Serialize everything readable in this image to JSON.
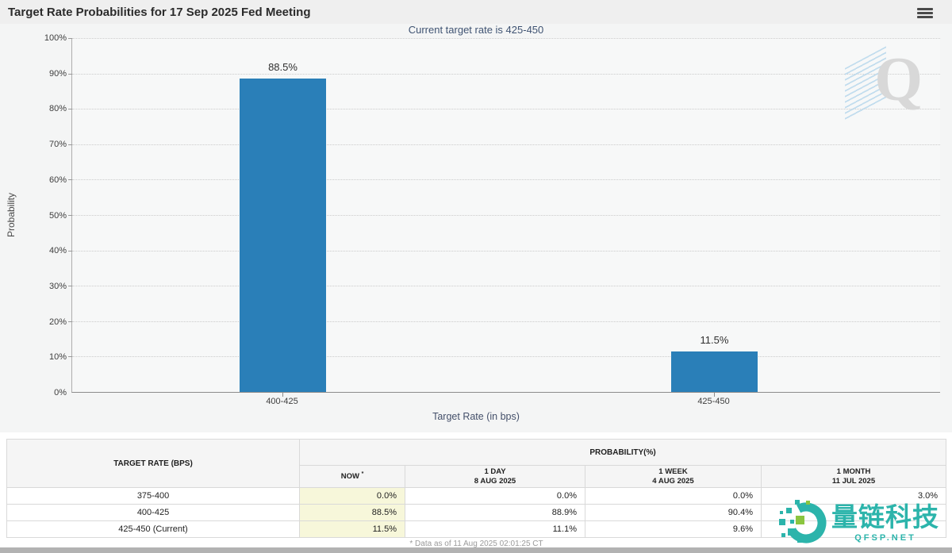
{
  "header": {
    "title": "Target Rate Probabilities for 17 Sep 2025 Fed Meeting",
    "subtitle": "Current target rate is 425-450",
    "menu_icon": "hamburger-menu-icon"
  },
  "chart_data": {
    "type": "bar",
    "title": "Target Rate Probabilities for 17 Sep 2025 Fed Meeting",
    "categories": [
      "400-425",
      "425-450"
    ],
    "values": [
      88.5,
      11.5
    ],
    "value_labels": [
      "88.5%",
      "11.5%"
    ],
    "xlabel": "Target Rate (in bps)",
    "ylabel": "Probability",
    "ylim": [
      0,
      100
    ],
    "yticks": [
      "100%",
      "90%",
      "80%",
      "70%",
      "60%",
      "50%",
      "40%",
      "30%",
      "20%",
      "10%",
      "0%"
    ],
    "grid": "horizontal dotted",
    "legend": "none",
    "bar_color": "#2a7fb8"
  },
  "watermark_q": "Q",
  "table": {
    "col1_header": "TARGET RATE (BPS)",
    "group_header": "PROBABILITY(%)",
    "columns": [
      {
        "label": "NOW",
        "sup": "*",
        "sublabel": ""
      },
      {
        "label": "1 DAY",
        "sublabel": "8 AUG 2025"
      },
      {
        "label": "1 WEEK",
        "sublabel": "4 AUG 2025"
      },
      {
        "label": "1 MONTH",
        "sublabel": "11 JUL 2025"
      }
    ],
    "rows": [
      {
        "rate": "375-400",
        "now": "0.0%",
        "day": "0.0%",
        "week": "0.0%",
        "month": "3.0%"
      },
      {
        "rate": "400-425",
        "now": "88.5%",
        "day": "88.9%",
        "week": "90.4%",
        "month": ""
      },
      {
        "rate": "425-450 (Current)",
        "now": "11.5%",
        "day": "11.1%",
        "week": "9.6%",
        "month": ""
      }
    ],
    "footnote": "* Data as of 11 Aug 2025 02:01:25 CT"
  },
  "overlay_watermark": {
    "text": "量链科技",
    "subtext": "QFSP.NET",
    "color": "#2cb4ab",
    "accent_color": "#8bc53f"
  },
  "colors": {
    "bar": "#2a7fb8",
    "now_column_highlight": "#f7f7da",
    "subtitle_text": "#3f5372",
    "panel_background": "#f4f5f5"
  }
}
